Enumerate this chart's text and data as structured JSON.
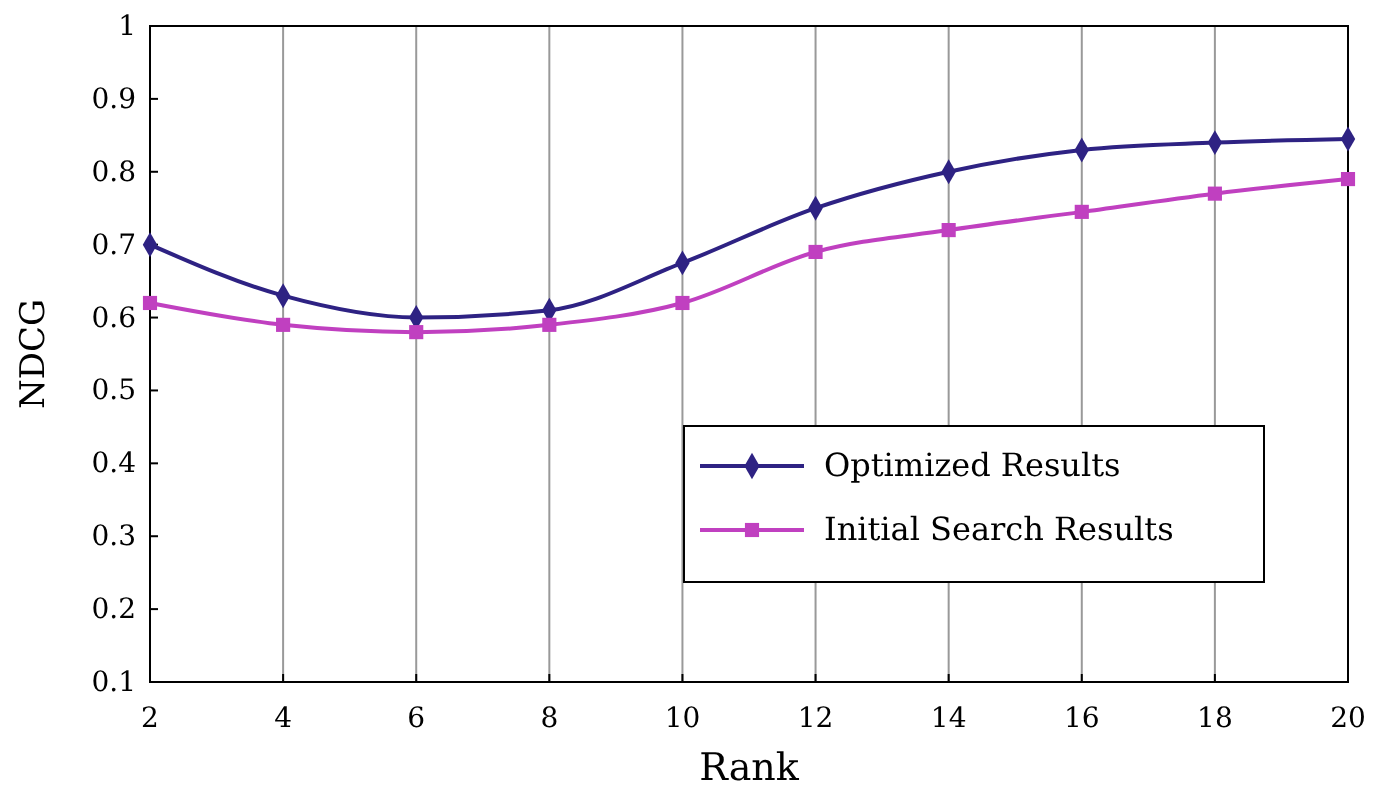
{
  "chart_data": {
    "type": "line",
    "xlabel": "Rank",
    "ylabel": "NDCG",
    "x": [
      2,
      4,
      6,
      8,
      10,
      12,
      14,
      16,
      18,
      20
    ],
    "xlim": [
      2,
      20
    ],
    "xticks": [
      2,
      4,
      6,
      8,
      10,
      12,
      14,
      16,
      18,
      20
    ],
    "ylim": [
      0.1,
      1
    ],
    "yticks": [
      0.1,
      0.2,
      0.3,
      0.4,
      0.5,
      0.6,
      0.7,
      0.8,
      0.9,
      1
    ],
    "grid": "x",
    "legend": "bottom right",
    "series": [
      {
        "name": "Optimized Results",
        "color": "#2e2283",
        "marker": "diamond",
        "values": [
          0.7,
          0.63,
          0.6,
          0.61,
          0.675,
          0.75,
          0.8,
          0.83,
          0.84,
          0.845
        ]
      },
      {
        "name": "Initial Search Results",
        "color": "#c040c0",
        "marker": "square",
        "values": [
          0.62,
          0.59,
          0.58,
          0.59,
          0.62,
          0.69,
          0.72,
          0.745,
          0.77,
          0.79
        ]
      }
    ]
  }
}
